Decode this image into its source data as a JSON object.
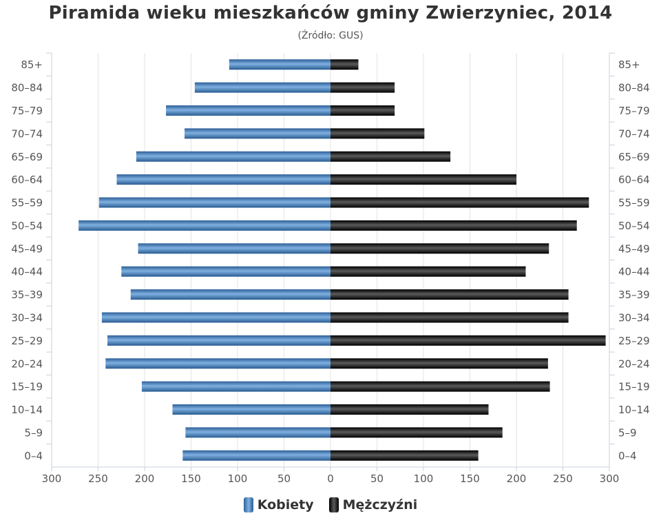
{
  "chart_data": {
    "type": "bar",
    "title": "Piramida wieku mieszkańców gminy Zwierzyniec, 2014",
    "subtitle": "(Źródło: GUS)",
    "categories": [
      "85+",
      "80–84",
      "75–79",
      "70–74",
      "65–69",
      "60–64",
      "55–59",
      "50–54",
      "45–49",
      "40–44",
      "35–39",
      "30–34",
      "25–29",
      "20–24",
      "15–19",
      "10–14",
      "5–9",
      "0–4"
    ],
    "series": [
      {
        "name": "Kobiety",
        "color": "#3a78b8",
        "values": [
          109,
          146,
          177,
          157,
          209,
          230,
          249,
          271,
          207,
          225,
          215,
          246,
          240,
          242,
          203,
          170,
          156,
          159
        ]
      },
      {
        "name": "Mężczyźni",
        "color": "#1a1a1a",
        "values": [
          30,
          69,
          69,
          101,
          129,
          200,
          278,
          265,
          235,
          210,
          256,
          256,
          296,
          234,
          236,
          170,
          185,
          159
        ]
      }
    ],
    "xlim": [
      -300,
      300
    ],
    "x_ticks": [
      -300,
      -250,
      -200,
      -150,
      -100,
      -50,
      0,
      50,
      100,
      150,
      200,
      250,
      300
    ],
    "x_tick_labels": [
      "300",
      "250",
      "200",
      "150",
      "100",
      "50",
      "0",
      "50",
      "100",
      "150",
      "200",
      "250",
      "300"
    ],
    "grid": true,
    "legend_position": "bottom"
  }
}
